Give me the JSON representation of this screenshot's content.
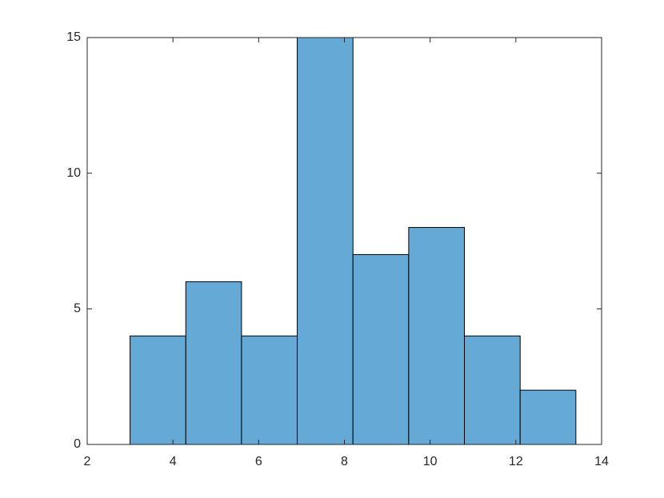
{
  "chart_data": {
    "type": "histogram",
    "bins": [
      3,
      4.3,
      5.6,
      6.9,
      8.2,
      9.5,
      10.8,
      12.1,
      13.4
    ],
    "counts": [
      4,
      6,
      4,
      15,
      7,
      8,
      4,
      2
    ],
    "color": "#65a9d7",
    "edge_color": "#000000",
    "xlim": [
      2,
      14
    ],
    "xticks": [
      2,
      4,
      6,
      8,
      10,
      12,
      14
    ],
    "ylim": [
      0,
      15
    ],
    "yticks": [
      0,
      5,
      10,
      15
    ],
    "box": true
  }
}
